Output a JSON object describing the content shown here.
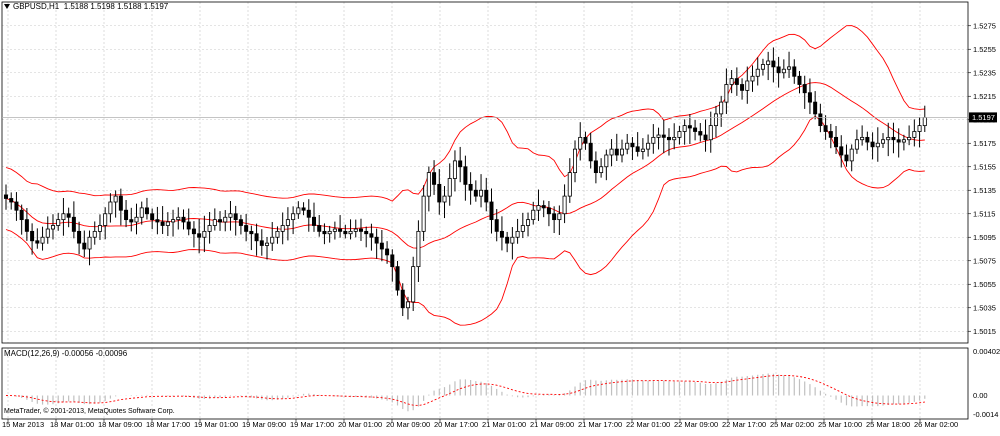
{
  "header": {
    "symbol": "GBPUSD,H1",
    "ohlc": "1.5188 1.5198 1.5188 1.5197"
  },
  "macd": {
    "title": "MACD(12,26,9) -0.00056 -0.00096",
    "axis_labels": [
      "0.00402",
      "0.00",
      "-0.0014"
    ]
  },
  "footer": {
    "copyright": "MetaTrader, © 2001-2013, MetaQuotes Software Corp."
  },
  "colors": {
    "background": "#ffffff",
    "grid": "#c8c8c8",
    "candle": "#000000",
    "bands": "#ff0000",
    "macd_hist": "#c0c0c0",
    "macd_signal": "#ff0000",
    "current_price_box": "#000000"
  },
  "chart_data": {
    "type": "candlestick",
    "symbol": "GBPUSD",
    "timeframe": "H1",
    "current_price": "1.5197",
    "price_labels": [
      "1.5275",
      "1.5255",
      "1.5235",
      "1.5215",
      "1.5195",
      "1.5175",
      "1.5155",
      "1.5135",
      "1.5115",
      "1.5095",
      "1.5075",
      "1.5055",
      "1.5035",
      "1.5015"
    ],
    "price_range": [
      1.5005,
      1.5285
    ],
    "time_labels": [
      "15 Mar 2013",
      "18 Mar 01:00",
      "18 Mar 09:00",
      "18 Mar 17:00",
      "19 Mar 01:00",
      "19 Mar 09:00",
      "19 Mar 17:00",
      "20 Mar 01:00",
      "20 Mar 09:00",
      "20 Mar 17:00",
      "21 Mar 01:00",
      "21 Mar 09:00",
      "21 Mar 17:00",
      "22 Mar 01:00",
      "22 Mar 09:00",
      "22 Mar 17:00",
      "25 Mar 02:00",
      "25 Mar 10:00",
      "25 Mar 18:00",
      "26 Mar 02:00"
    ],
    "indicators": [
      "Bollinger Bands",
      "MACD(12,26,9)"
    ],
    "grid": true,
    "close_path": [
      1.5128,
      1.5125,
      1.5118,
      1.511,
      1.51,
      1.5092,
      1.509,
      1.5095,
      1.5102,
      1.5105,
      1.511,
      1.5115,
      1.5112,
      1.51,
      1.509,
      1.5085,
      1.5095,
      1.51,
      1.5105,
      1.5115,
      1.5125,
      1.513,
      1.5118,
      1.511,
      1.5108,
      1.5112,
      1.512,
      1.5115,
      1.511,
      1.5108,
      1.5105,
      1.5108,
      1.511,
      1.5112,
      1.5108,
      1.5102,
      1.5098,
      1.5095,
      1.51,
      1.5105,
      1.511,
      1.5108,
      1.5112,
      1.5115,
      1.511,
      1.5105,
      1.51,
      1.5098,
      1.5092,
      1.5088,
      1.509,
      1.5095,
      1.51,
      1.5105,
      1.511,
      1.5115,
      1.512,
      1.5118,
      1.5112,
      1.5105,
      1.51,
      1.5098,
      1.51,
      1.5102,
      1.51,
      1.5098,
      1.51,
      1.5102,
      1.51,
      1.5098,
      1.5095,
      1.509,
      1.5085,
      1.508,
      1.507,
      1.505,
      1.5035,
      1.504,
      1.507,
      1.51,
      1.513,
      1.515,
      1.514,
      1.5125,
      1.513,
      1.5145,
      1.516,
      1.5155,
      1.514,
      1.5135,
      1.513,
      1.5135,
      1.5125,
      1.511,
      1.51,
      1.5095,
      1.509,
      1.5095,
      1.51,
      1.5105,
      1.511,
      1.5118,
      1.5122,
      1.512,
      1.5115,
      1.511,
      1.5115,
      1.513,
      1.515,
      1.517,
      1.518,
      1.5175,
      1.516,
      1.515,
      1.5155,
      1.5165,
      1.517,
      1.5165,
      1.517,
      1.5175,
      1.5172,
      1.5168,
      1.517,
      1.5175,
      1.518,
      1.5182,
      1.518,
      1.5178,
      1.518,
      1.5185,
      1.519,
      1.5188,
      1.5185,
      1.5182,
      1.5178,
      1.519,
      1.52,
      1.521,
      1.5225,
      1.523,
      1.5225,
      1.522,
      1.5228,
      1.5232,
      1.5238,
      1.5242,
      1.5245,
      1.524,
      1.5235,
      1.5238,
      1.524,
      1.5232,
      1.5225,
      1.5218,
      1.521,
      1.52,
      1.519,
      1.5185,
      1.518,
      1.5172,
      1.5165,
      1.516,
      1.517,
      1.5178,
      1.518,
      1.5176,
      1.5172,
      1.5175,
      1.5178,
      1.518,
      1.5178,
      1.5176,
      1.5178,
      1.518,
      1.5185,
      1.519,
      1.5197
    ]
  }
}
